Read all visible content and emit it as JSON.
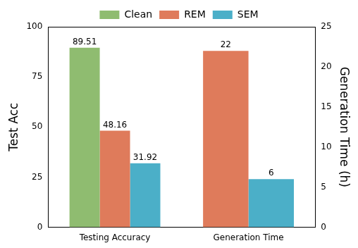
{
  "chart_data": {
    "type": "bar",
    "categories": [
      "Testing Accuracy",
      "Generation Time"
    ],
    "ylabel": "Test Acc",
    "y2label": "Generation Time (h)",
    "series": [
      {
        "name": "Clean",
        "color": "#8fbc70",
        "values": [
          89.51,
          null
        ]
      },
      {
        "name": "REM",
        "color": "#df7b5b",
        "values": [
          48.16,
          null
        ]
      },
      {
        "name": "SEM",
        "color": "#4bafc8",
        "values": [
          31.92,
          null
        ]
      },
      {
        "name": "REM",
        "color": "#df7b5b",
        "values": [
          null,
          22
        ],
        "axis": "y2"
      },
      {
        "name": "SEM",
        "color": "#4bafc8",
        "values": [
          null,
          6
        ],
        "axis": "y2"
      }
    ],
    "ylim": [
      0,
      100
    ],
    "yticks": [
      0,
      25,
      50,
      75,
      100
    ],
    "y2lim": [
      0,
      25
    ],
    "y2ticks": [
      0,
      5,
      10,
      15,
      20,
      25
    ],
    "grid": false,
    "legend": "top",
    "data_labels": true
  }
}
